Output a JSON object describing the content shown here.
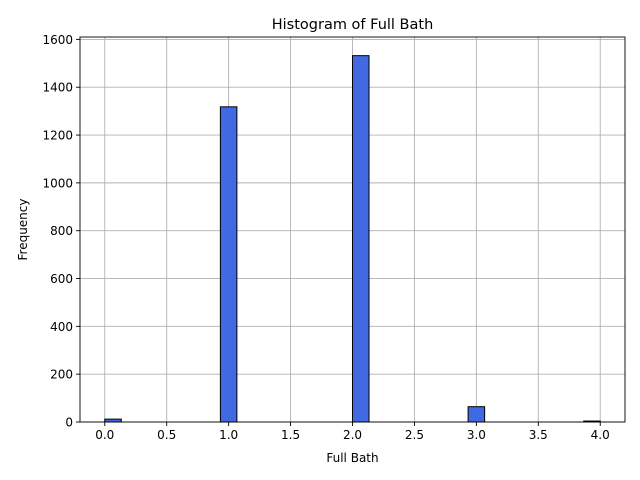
{
  "chart_data": {
    "type": "bar",
    "title": "Histogram of Full Bath",
    "xlabel": "Full Bath",
    "ylabel": "Frequency",
    "xlim": [
      -0.2,
      4.2
    ],
    "ylim": [
      0,
      1610
    ],
    "xticks": [
      0.0,
      0.5,
      1.0,
      1.5,
      2.0,
      2.5,
      3.0,
      3.5,
      4.0
    ],
    "xtick_labels": [
      "0.0",
      "0.5",
      "1.0",
      "1.5",
      "2.0",
      "2.5",
      "3.0",
      "3.5",
      "4.0"
    ],
    "yticks": [
      0,
      200,
      400,
      600,
      800,
      1000,
      1200,
      1400,
      1600
    ],
    "ytick_labels": [
      "0",
      "200",
      "400",
      "600",
      "800",
      "1000",
      "1200",
      "1400",
      "1600"
    ],
    "grid": true,
    "bar_color": "#4169e1",
    "edge_color": "#000000",
    "bins": [
      {
        "start": 0.0,
        "end": 0.1333,
        "count": 12
      },
      {
        "start": 0.9333,
        "end": 1.0667,
        "count": 1318
      },
      {
        "start": 2.0,
        "end": 2.1333,
        "count": 1532
      },
      {
        "start": 2.9333,
        "end": 3.0667,
        "count": 64
      },
      {
        "start": 3.8667,
        "end": 4.0,
        "count": 4
      }
    ]
  }
}
